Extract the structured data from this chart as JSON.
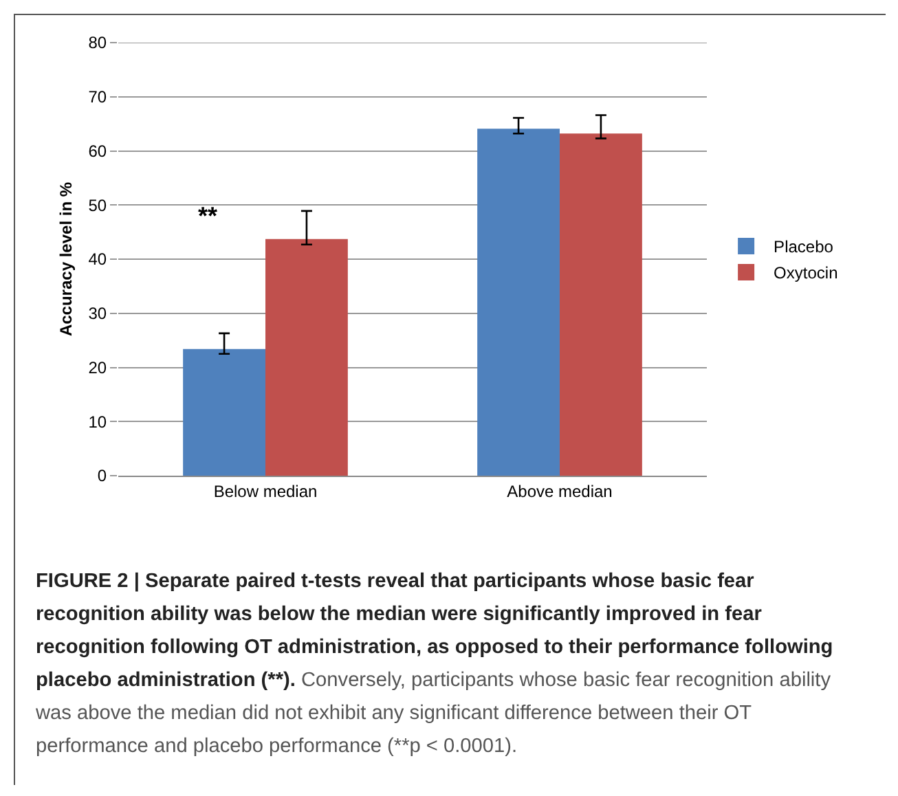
{
  "chart_data": {
    "type": "bar",
    "ylabel": "Accuracy level in %",
    "categories": [
      "Below median",
      "Above median"
    ],
    "series": [
      {
        "name": "Placebo",
        "color": "#4f81bd",
        "values": [
          23.4,
          64.1
        ],
        "errors": [
          [
            22.5,
            26.3
          ],
          [
            63.2,
            66.1
          ]
        ]
      },
      {
        "name": "Oxytocin",
        "color": "#c0504d",
        "values": [
          43.7,
          63.2
        ],
        "errors": [
          [
            42.7,
            48.9
          ],
          [
            62.3,
            66.6
          ]
        ]
      }
    ],
    "ylim": [
      0,
      80
    ],
    "yticks": [
      0,
      10,
      20,
      30,
      40,
      50,
      60,
      70,
      80
    ],
    "grid": "y",
    "legend": "right",
    "annotations": [
      "**",
      "FIGURE 2 | Separate paired t-tests reveal that participants whose basic fear recognition ability was below the median were significantly improved in fear recognition following OT administration, as opposed to their performance following placebo administration (**).",
      "Conversely, participants whose basic fear recognition ability was above the median did not exhibit any significant difference between their OT performance and placebo performance (**p < 0.0001)."
    ]
  }
}
